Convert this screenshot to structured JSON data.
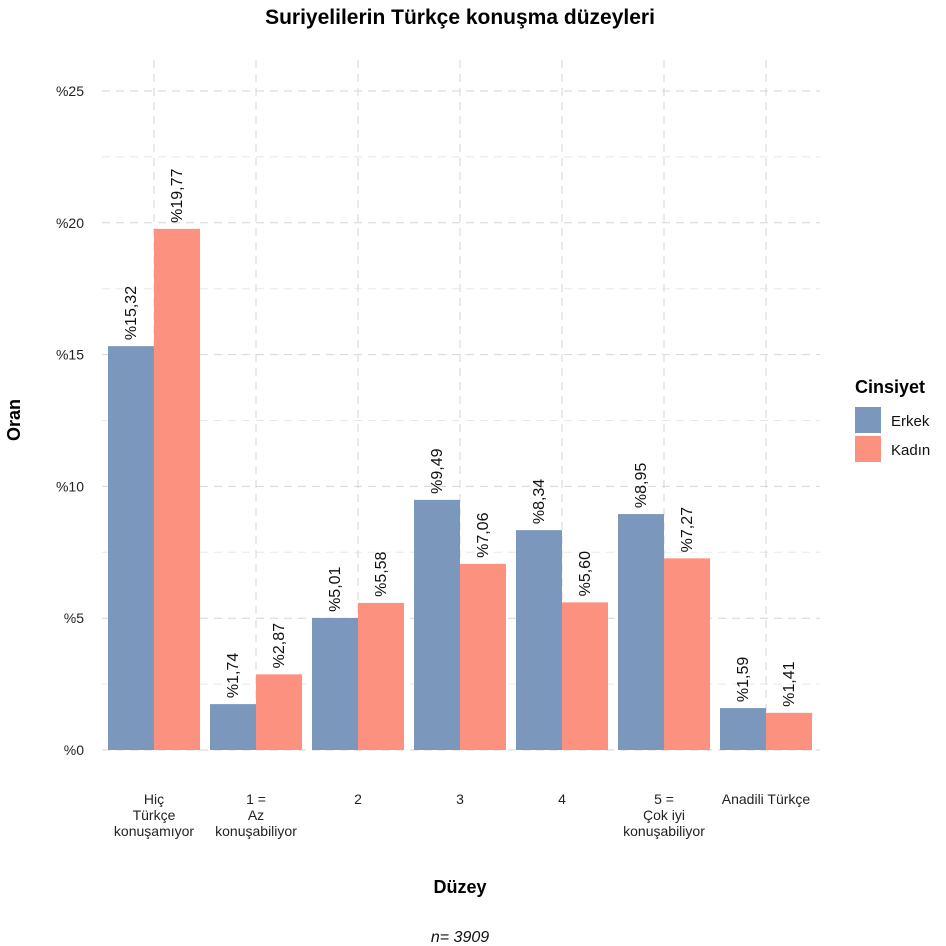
{
  "chart_data": {
    "type": "bar",
    "title": "Suriyelilerin Türkçe konuşma düzeyleri",
    "xlabel": "Düzey",
    "ylabel": "Oran",
    "caption": "n=  3909",
    "ylim": [
      0,
      25
    ],
    "yticks": [
      0,
      5,
      10,
      15,
      20,
      25
    ],
    "ytick_labels": [
      "%0",
      "%5",
      "%10",
      "%15",
      "%20",
      "%25"
    ],
    "grid": true,
    "legend": {
      "title": "Cinsiyet",
      "position": "right"
    },
    "categories": [
      [
        "Hiç",
        "Türkçe",
        "konuşamıyor"
      ],
      [
        "1 =",
        "Az",
        "konuşabiliyor"
      ],
      [
        "2"
      ],
      [
        "3"
      ],
      [
        "4"
      ],
      [
        "5 =",
        "Çok iyi",
        "konuşabiliyor"
      ],
      [
        "Anadili Türkçe"
      ]
    ],
    "series": [
      {
        "name": "Erkek",
        "color": "#7b97bb",
        "values": [
          15.32,
          1.74,
          5.01,
          9.49,
          8.34,
          8.95,
          1.59
        ],
        "labels": [
          "%15,32",
          "%1,74",
          "%5,01",
          "%9,49",
          "%8,34",
          "%8,95",
          "%1,59"
        ]
      },
      {
        "name": "Kadın",
        "color": "#fc9180",
        "values": [
          19.77,
          2.87,
          5.58,
          7.06,
          5.6,
          7.27,
          1.41
        ],
        "labels": [
          "%19,77",
          "%2,87",
          "%5,58",
          "%7,06",
          "%5,60",
          "%7,27",
          "%1,41"
        ]
      }
    ]
  }
}
